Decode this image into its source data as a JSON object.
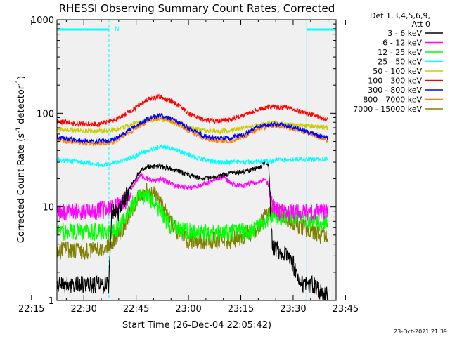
{
  "chart_data": {
    "type": "line",
    "title": "RHESSI Observing Summary Count Rates, Corrected",
    "xlabel": "Start Time (26-Dec-04 22:05:42)",
    "ylabel_parts": [
      "Corrected Count Rate (s",
      "-1",
      " detector",
      "-1",
      ")"
    ],
    "y_scale": "log",
    "ylim": [
      1,
      1000
    ],
    "xlim_minutes": [
      22.3,
      102.3
    ],
    "y_ticks": [
      {
        "value": 1,
        "label": "1"
      },
      {
        "value": 10,
        "label": "10"
      },
      {
        "value": 100,
        "label": "100"
      },
      {
        "value": 1000,
        "label": "1000"
      }
    ],
    "x_ticks": [
      {
        "minute": 15,
        "label": "22:15"
      },
      {
        "minute": 30,
        "label": "22:30"
      },
      {
        "minute": 45,
        "label": "22:45"
      },
      {
        "minute": 60,
        "label": "23:00"
      },
      {
        "minute": 75,
        "label": "23:15"
      },
      {
        "minute": 90,
        "label": "23:30"
      },
      {
        "minute": 105,
        "label": "23:45"
      }
    ],
    "legend_header": [
      "Det 1,3,4,5,6,9,",
      "Att 0"
    ],
    "night_label": "N",
    "night_intervals_minutes": [
      [
        22.3,
        37.2
      ],
      [
        93.9,
        102.3
      ]
    ],
    "series": [
      {
        "name": "3 - 6 keV",
        "color": "#000000",
        "points": [
          [
            22.3,
            1.5
          ],
          [
            30,
            1.5
          ],
          [
            36,
            1.5
          ],
          [
            37.2,
            1.5
          ],
          [
            38,
            9
          ],
          [
            40,
            9
          ],
          [
            42,
            13
          ],
          [
            44,
            18
          ],
          [
            46,
            24
          ],
          [
            48,
            27
          ],
          [
            52,
            27
          ],
          [
            56,
            25
          ],
          [
            60,
            22
          ],
          [
            64,
            20
          ],
          [
            68,
            21
          ],
          [
            72,
            23
          ],
          [
            76,
            24
          ],
          [
            80,
            26
          ],
          [
            82,
            30
          ],
          [
            83,
            28
          ],
          [
            84,
            4
          ],
          [
            86,
            3.5
          ],
          [
            88,
            3
          ],
          [
            90,
            2.5
          ],
          [
            92,
            1.5
          ],
          [
            93.9,
            1.5
          ],
          [
            96,
            1.5
          ],
          [
            98,
            1.2
          ],
          [
            100,
            1.2
          ]
        ]
      },
      {
        "name": "6 - 12 keV",
        "color": "#ff00ff",
        "points": [
          [
            22.3,
            9
          ],
          [
            28,
            9
          ],
          [
            32,
            9
          ],
          [
            36,
            9.5
          ],
          [
            38,
            10
          ],
          [
            40,
            10.5
          ],
          [
            42,
            12
          ],
          [
            44,
            16
          ],
          [
            46,
            22
          ],
          [
            48,
            20
          ],
          [
            50,
            19
          ],
          [
            52,
            20
          ],
          [
            56,
            17
          ],
          [
            60,
            16
          ],
          [
            64,
            17
          ],
          [
            68,
            20
          ],
          [
            70,
            21
          ],
          [
            72,
            18
          ],
          [
            74,
            17
          ],
          [
            76,
            17
          ],
          [
            78,
            18
          ],
          [
            80,
            18
          ],
          [
            82,
            20
          ],
          [
            83,
            17
          ],
          [
            84,
            10
          ],
          [
            86,
            9
          ],
          [
            90,
            9
          ],
          [
            94,
            9
          ],
          [
            98,
            9
          ],
          [
            100,
            9
          ]
        ]
      },
      {
        "name": "12 - 25 keV",
        "color": "#00ff00",
        "points": [
          [
            22.3,
            5.5
          ],
          [
            30,
            5.5
          ],
          [
            36,
            5.5
          ],
          [
            40,
            6
          ],
          [
            42,
            8
          ],
          [
            44,
            11
          ],
          [
            46,
            13
          ],
          [
            48,
            13
          ],
          [
            50,
            12
          ],
          [
            52,
            9
          ],
          [
            54,
            7
          ],
          [
            56,
            6
          ],
          [
            60,
            5.5
          ],
          [
            66,
            5.5
          ],
          [
            70,
            5.5
          ],
          [
            74,
            5.5
          ],
          [
            78,
            5.5
          ],
          [
            80,
            6
          ],
          [
            82,
            7
          ],
          [
            84,
            8
          ],
          [
            86,
            8
          ],
          [
            90,
            8
          ],
          [
            94,
            7.5
          ],
          [
            98,
            7
          ],
          [
            100,
            7
          ]
        ]
      },
      {
        "name": "25 - 50 keV",
        "color": "#00ffff",
        "points": [
          [
            22.3,
            32
          ],
          [
            30,
            30
          ],
          [
            36,
            28
          ],
          [
            40,
            30
          ],
          [
            44,
            34
          ],
          [
            48,
            40
          ],
          [
            52,
            44
          ],
          [
            56,
            42
          ],
          [
            60,
            36
          ],
          [
            64,
            32
          ],
          [
            68,
            30
          ],
          [
            72,
            30
          ],
          [
            76,
            30
          ],
          [
            80,
            30
          ],
          [
            84,
            31
          ],
          [
            88,
            32
          ],
          [
            92,
            32
          ],
          [
            96,
            32
          ],
          [
            100,
            33
          ]
        ]
      },
      {
        "name": "50 - 100 keV",
        "color": "#cccc00",
        "points": [
          [
            22.3,
            68
          ],
          [
            28,
            66
          ],
          [
            34,
            64
          ],
          [
            40,
            68
          ],
          [
            44,
            76
          ],
          [
            48,
            84
          ],
          [
            52,
            86
          ],
          [
            56,
            80
          ],
          [
            60,
            70
          ],
          [
            64,
            66
          ],
          [
            68,
            64
          ],
          [
            72,
            66
          ],
          [
            76,
            70
          ],
          [
            80,
            75
          ],
          [
            84,
            78
          ],
          [
            88,
            76
          ],
          [
            92,
            74
          ],
          [
            96,
            72
          ],
          [
            100,
            70
          ]
        ]
      },
      {
        "name": "100 - 300 keV",
        "color": "#ff0000",
        "points": [
          [
            22.3,
            82
          ],
          [
            28,
            78
          ],
          [
            34,
            76
          ],
          [
            40,
            88
          ],
          [
            44,
            110
          ],
          [
            48,
            140
          ],
          [
            52,
            150
          ],
          [
            56,
            130
          ],
          [
            60,
            100
          ],
          [
            64,
            86
          ],
          [
            68,
            82
          ],
          [
            72,
            86
          ],
          [
            76,
            96
          ],
          [
            80,
            110
          ],
          [
            84,
            118
          ],
          [
            88,
            115
          ],
          [
            92,
            105
          ],
          [
            96,
            95
          ],
          [
            100,
            84
          ]
        ]
      },
      {
        "name": "300 - 800 keV",
        "color": "#0000ff",
        "points": [
          [
            22.3,
            56
          ],
          [
            28,
            52
          ],
          [
            34,
            50
          ],
          [
            38,
            52
          ],
          [
            42,
            62
          ],
          [
            46,
            78
          ],
          [
            50,
            92
          ],
          [
            52,
            95
          ],
          [
            56,
            85
          ],
          [
            60,
            70
          ],
          [
            64,
            58
          ],
          [
            68,
            54
          ],
          [
            72,
            54
          ],
          [
            76,
            60
          ],
          [
            80,
            72
          ],
          [
            84,
            76
          ],
          [
            88,
            74
          ],
          [
            92,
            68
          ],
          [
            96,
            60
          ],
          [
            100,
            54
          ]
        ]
      },
      {
        "name": "800 - 7000 keV",
        "color": "#ff8000",
        "points": [
          [
            22.3,
            52
          ],
          [
            28,
            49
          ],
          [
            34,
            47
          ],
          [
            38,
            49
          ],
          [
            42,
            58
          ],
          [
            46,
            74
          ],
          [
            50,
            88
          ],
          [
            52,
            90
          ],
          [
            56,
            80
          ],
          [
            60,
            66
          ],
          [
            64,
            55
          ],
          [
            68,
            51
          ],
          [
            72,
            51
          ],
          [
            76,
            57
          ],
          [
            80,
            68
          ],
          [
            84,
            74
          ],
          [
            88,
            72
          ],
          [
            92,
            65
          ],
          [
            96,
            58
          ],
          [
            100,
            52
          ]
        ]
      },
      {
        "name": "7000 - 15000 keV",
        "color": "#808000",
        "points": [
          [
            22.3,
            3.5
          ],
          [
            30,
            3.5
          ],
          [
            36,
            3.5
          ],
          [
            40,
            5
          ],
          [
            42,
            7
          ],
          [
            44,
            10
          ],
          [
            46,
            13
          ],
          [
            48,
            15
          ],
          [
            50,
            14
          ],
          [
            52,
            11
          ],
          [
            54,
            8
          ],
          [
            56,
            6
          ],
          [
            58,
            5
          ],
          [
            60,
            4.5
          ],
          [
            66,
            4.5
          ],
          [
            72,
            4.5
          ],
          [
            76,
            5
          ],
          [
            80,
            6
          ],
          [
            82,
            8
          ],
          [
            84,
            10
          ],
          [
            86,
            9
          ],
          [
            90,
            7
          ],
          [
            94,
            6
          ],
          [
            98,
            5
          ],
          [
            100,
            5
          ]
        ]
      }
    ]
  },
  "footer": {
    "timestamp": "23-Oct-2021 21:39"
  }
}
